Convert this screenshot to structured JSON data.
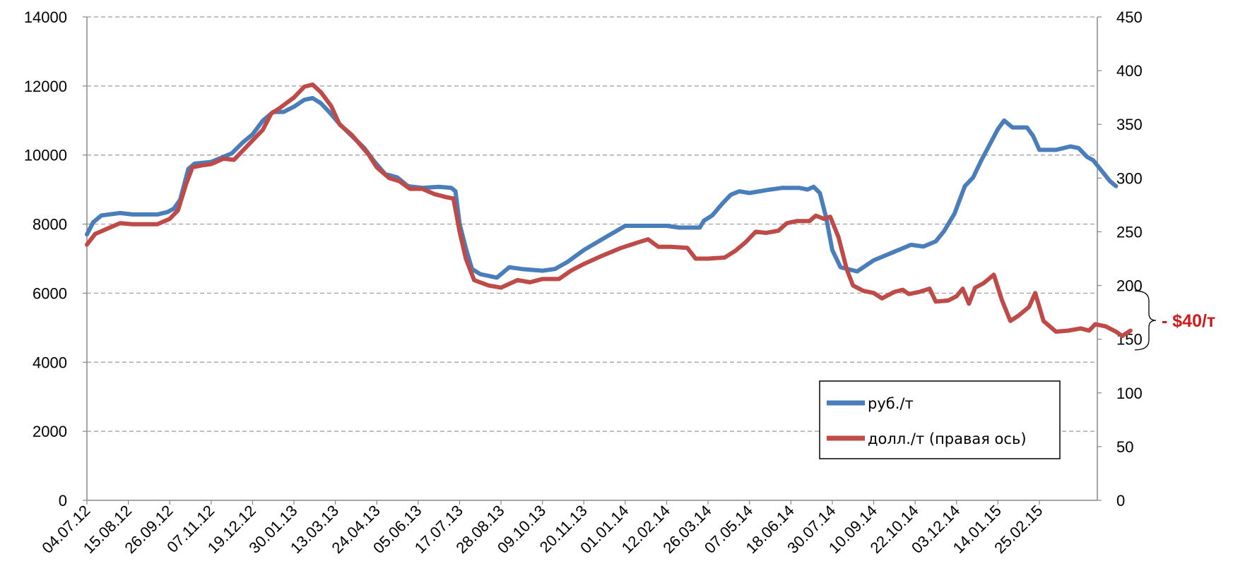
{
  "chart_data": {
    "type": "line",
    "title": "",
    "xlabel": "",
    "ylabel": "",
    "ylim": [
      0,
      14000
    ],
    "y2lim": [
      0,
      450
    ],
    "yticks": [
      0,
      2000,
      4000,
      6000,
      8000,
      10000,
      12000,
      14000
    ],
    "y2ticks": [
      0,
      50,
      100,
      150,
      200,
      250,
      300,
      350,
      400,
      450
    ],
    "grid": "horizontal dashed",
    "legend_position": "bottom-right",
    "x_tick_labels": [
      "04.07.12",
      "15.08.12",
      "26.09.12",
      "07.11.12",
      "19.12.12",
      "30.01.13",
      "13.03.13",
      "24.04.13",
      "05.06.13",
      "17.07.13",
      "28.08.13",
      "09.10.13",
      "20.11.13",
      "01.01.14",
      "12.02.14",
      "26.03.14",
      "07.05.14",
      "18.06.14",
      "30.07.14",
      "10.09.14",
      "22.10.14",
      "03.12.14",
      "14.01.15",
      "25.02.15"
    ],
    "x_end": 24.4,
    "series": [
      {
        "name": "руб./т",
        "axis": "left",
        "color": "#4a7ebb",
        "points": [
          [
            0,
            7700
          ],
          [
            0.15,
            8050
          ],
          [
            0.35,
            8250
          ],
          [
            0.8,
            8320
          ],
          [
            1.1,
            8280
          ],
          [
            1.7,
            8280
          ],
          [
            1.95,
            8350
          ],
          [
            2.1,
            8450
          ],
          [
            2.25,
            8700
          ],
          [
            2.45,
            9600
          ],
          [
            2.6,
            9750
          ],
          [
            3.0,
            9800
          ],
          [
            3.2,
            9900
          ],
          [
            3.5,
            10050
          ],
          [
            3.75,
            10350
          ],
          [
            4.0,
            10600
          ],
          [
            4.25,
            11000
          ],
          [
            4.5,
            11250
          ],
          [
            4.75,
            11250
          ],
          [
            5.0,
            11400
          ],
          [
            5.25,
            11600
          ],
          [
            5.45,
            11650
          ],
          [
            5.65,
            11500
          ],
          [
            5.85,
            11250
          ],
          [
            6.1,
            10900
          ],
          [
            6.4,
            10550
          ],
          [
            6.7,
            10200
          ],
          [
            6.95,
            9800
          ],
          [
            7.2,
            9450
          ],
          [
            7.5,
            9350
          ],
          [
            7.75,
            9100
          ],
          [
            8.1,
            9050
          ],
          [
            8.5,
            9080
          ],
          [
            8.8,
            9050
          ],
          [
            8.9,
            8950
          ],
          [
            9.0,
            8000
          ],
          [
            9.15,
            7300
          ],
          [
            9.3,
            6700
          ],
          [
            9.5,
            6550
          ],
          [
            9.9,
            6450
          ],
          [
            10.2,
            6750
          ],
          [
            10.5,
            6700
          ],
          [
            11.0,
            6650
          ],
          [
            11.3,
            6700
          ],
          [
            11.6,
            6900
          ],
          [
            12.0,
            7250
          ],
          [
            12.5,
            7600
          ],
          [
            13.0,
            7950
          ],
          [
            13.5,
            7950
          ],
          [
            14.0,
            7950
          ],
          [
            14.3,
            7900
          ],
          [
            14.8,
            7900
          ],
          [
            14.9,
            8100
          ],
          [
            15.1,
            8250
          ],
          [
            15.35,
            8600
          ],
          [
            15.55,
            8850
          ],
          [
            15.75,
            8950
          ],
          [
            16.0,
            8900
          ],
          [
            16.5,
            9000
          ],
          [
            16.8,
            9050
          ],
          [
            17.2,
            9050
          ],
          [
            17.4,
            9000
          ],
          [
            17.55,
            9080
          ],
          [
            17.7,
            8900
          ],
          [
            17.85,
            8200
          ],
          [
            18.0,
            7250
          ],
          [
            18.2,
            6750
          ],
          [
            18.6,
            6630
          ],
          [
            19.0,
            6950
          ],
          [
            19.5,
            7200
          ],
          [
            19.9,
            7400
          ],
          [
            20.2,
            7350
          ],
          [
            20.5,
            7500
          ],
          [
            20.7,
            7800
          ],
          [
            20.95,
            8300
          ],
          [
            21.2,
            9100
          ],
          [
            21.4,
            9350
          ],
          [
            21.6,
            9850
          ],
          [
            21.8,
            10300
          ],
          [
            22.0,
            10750
          ],
          [
            22.15,
            11000
          ],
          [
            22.35,
            10800
          ],
          [
            22.7,
            10800
          ],
          [
            22.85,
            10550
          ],
          [
            23.0,
            10150
          ],
          [
            23.4,
            10150
          ],
          [
            23.75,
            10250
          ],
          [
            23.95,
            10200
          ],
          [
            24.15,
            9950
          ],
          [
            24.3,
            9850
          ],
          [
            24.5,
            9550
          ],
          [
            24.7,
            9250
          ],
          [
            24.85,
            9100
          ]
        ]
      },
      {
        "name": "долл./т (правая ось)",
        "axis": "right",
        "color": "#be4b48",
        "points": [
          [
            0,
            238
          ],
          [
            0.2,
            248
          ],
          [
            0.5,
            253
          ],
          [
            0.8,
            258
          ],
          [
            1.1,
            257
          ],
          [
            1.7,
            257
          ],
          [
            2.0,
            262
          ],
          [
            2.2,
            270
          ],
          [
            2.4,
            295
          ],
          [
            2.55,
            310
          ],
          [
            2.8,
            312
          ],
          [
            3.0,
            313
          ],
          [
            3.3,
            318
          ],
          [
            3.55,
            317
          ],
          [
            3.75,
            325
          ],
          [
            4.0,
            335
          ],
          [
            4.25,
            345
          ],
          [
            4.45,
            360
          ],
          [
            4.65,
            365
          ],
          [
            5.0,
            375
          ],
          [
            5.25,
            385
          ],
          [
            5.45,
            387
          ],
          [
            5.65,
            380
          ],
          [
            5.9,
            367
          ],
          [
            6.1,
            350
          ],
          [
            6.4,
            340
          ],
          [
            6.8,
            322
          ],
          [
            7.0,
            310
          ],
          [
            7.3,
            300
          ],
          [
            7.55,
            297
          ],
          [
            7.8,
            290
          ],
          [
            8.1,
            290
          ],
          [
            8.4,
            285
          ],
          [
            8.7,
            282
          ],
          [
            8.85,
            281
          ],
          [
            9.0,
            250
          ],
          [
            9.15,
            225
          ],
          [
            9.35,
            205
          ],
          [
            9.7,
            200
          ],
          [
            10.0,
            198
          ],
          [
            10.4,
            205
          ],
          [
            10.7,
            203
          ],
          [
            11.0,
            206
          ],
          [
            11.4,
            206
          ],
          [
            11.7,
            214
          ],
          [
            12.0,
            220
          ],
          [
            12.4,
            227
          ],
          [
            12.9,
            235
          ],
          [
            13.3,
            240
          ],
          [
            13.55,
            243
          ],
          [
            13.8,
            236
          ],
          [
            14.1,
            236
          ],
          [
            14.5,
            235
          ],
          [
            14.7,
            225
          ],
          [
            15.0,
            225
          ],
          [
            15.4,
            226
          ],
          [
            15.65,
            232
          ],
          [
            15.9,
            240
          ],
          [
            16.15,
            250
          ],
          [
            16.4,
            249
          ],
          [
            16.7,
            251
          ],
          [
            16.9,
            258
          ],
          [
            17.15,
            260
          ],
          [
            17.45,
            260
          ],
          [
            17.6,
            265
          ],
          [
            17.8,
            262
          ],
          [
            17.95,
            264
          ],
          [
            18.15,
            245
          ],
          [
            18.35,
            215
          ],
          [
            18.5,
            200
          ],
          [
            18.75,
            195
          ],
          [
            19.0,
            193
          ],
          [
            19.2,
            188
          ],
          [
            19.5,
            194
          ],
          [
            19.7,
            196
          ],
          [
            19.85,
            192
          ],
          [
            20.1,
            194
          ],
          [
            20.35,
            197
          ],
          [
            20.5,
            185
          ],
          [
            20.8,
            186
          ],
          [
            21.0,
            190
          ],
          [
            21.15,
            197
          ],
          [
            21.3,
            183
          ],
          [
            21.45,
            198
          ],
          [
            21.65,
            202
          ],
          [
            21.9,
            210
          ],
          [
            22.1,
            186
          ],
          [
            22.3,
            167
          ],
          [
            22.5,
            172
          ],
          [
            22.75,
            180
          ],
          [
            22.9,
            193
          ],
          [
            23.1,
            167
          ],
          [
            23.4,
            157
          ],
          [
            23.7,
            158
          ],
          [
            24.0,
            160
          ],
          [
            24.2,
            158
          ],
          [
            24.35,
            164
          ],
          [
            24.6,
            162
          ],
          [
            24.85,
            157
          ],
          [
            25.0,
            153
          ],
          [
            25.2,
            158
          ]
        ]
      }
    ],
    "annotation": {
      "text": "- $40/т",
      "range_right_axis": [
        140,
        195
      ],
      "color": "#d21a1a"
    }
  }
}
